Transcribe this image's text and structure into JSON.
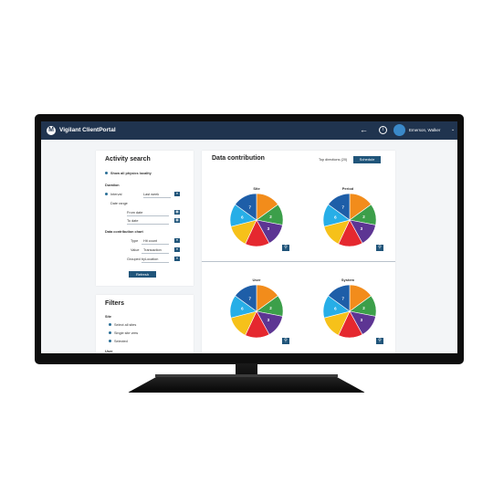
{
  "app": {
    "title": "Vigilant ClientPortal",
    "logo_glyph": "M"
  },
  "header": {
    "user_name": "Emerson, Walker",
    "back_glyph": "←",
    "info_glyph": "i",
    "caret_glyph": "⌄"
  },
  "activity_search": {
    "title": "Activity search",
    "option_label": "Show all physics locality",
    "duration_label": "Duration",
    "duration_option": "Interval",
    "duration_value": "Last week",
    "sub_label": "Date range",
    "from_label": "From date",
    "to_label": "To date",
    "data_contribution_label": "Data contribution chart",
    "type_label": "Type",
    "type_value": "Hit count",
    "value_label": "Value",
    "value_value": "Transaction",
    "group_label": "Grouped by",
    "group_value": "Location",
    "refresh_label": "Refresh"
  },
  "filters": {
    "title": "Filters",
    "site_label": "Site",
    "site_items": [
      "Select all sites",
      "Single site view",
      "Selected"
    ],
    "user_label": "User"
  },
  "data_contribution": {
    "title": "Data contribution",
    "top_label": "Top directions (20)",
    "schedule_label": "Schedule",
    "colors": [
      "#f28c1b",
      "#3c9f4a",
      "#5d3593",
      "#e5282f",
      "#f6c11a",
      "#27aee7",
      "#1e5ea8"
    ]
  },
  "charts": [
    {
      "title": "Site",
      "zoom": "⚲"
    },
    {
      "title": "Period",
      "zoom": "⚲"
    },
    {
      "title": "User",
      "zoom": "⚲"
    },
    {
      "title": "System",
      "zoom": "⚲"
    }
  ],
  "chart_data": [
    {
      "type": "pie",
      "title": "Site",
      "labels": [
        "",
        "2",
        "3",
        "",
        "",
        "6",
        "7"
      ],
      "values": [
        15,
        13,
        14,
        15,
        14,
        14,
        15
      ]
    },
    {
      "type": "pie",
      "title": "Period",
      "labels": [
        "",
        "2",
        "3",
        "",
        "",
        "6",
        "7"
      ],
      "values": [
        15,
        13,
        14,
        15,
        14,
        14,
        15
      ]
    },
    {
      "type": "pie",
      "title": "User",
      "labels": [
        "",
        "2",
        "3",
        "",
        "",
        "6",
        "7"
      ],
      "values": [
        15,
        13,
        14,
        15,
        14,
        14,
        15
      ]
    },
    {
      "type": "pie",
      "title": "System",
      "labels": [
        "",
        "2",
        "3",
        "",
        "",
        "6",
        "7"
      ],
      "values": [
        15,
        13,
        14,
        15,
        14,
        14,
        15
      ]
    }
  ]
}
